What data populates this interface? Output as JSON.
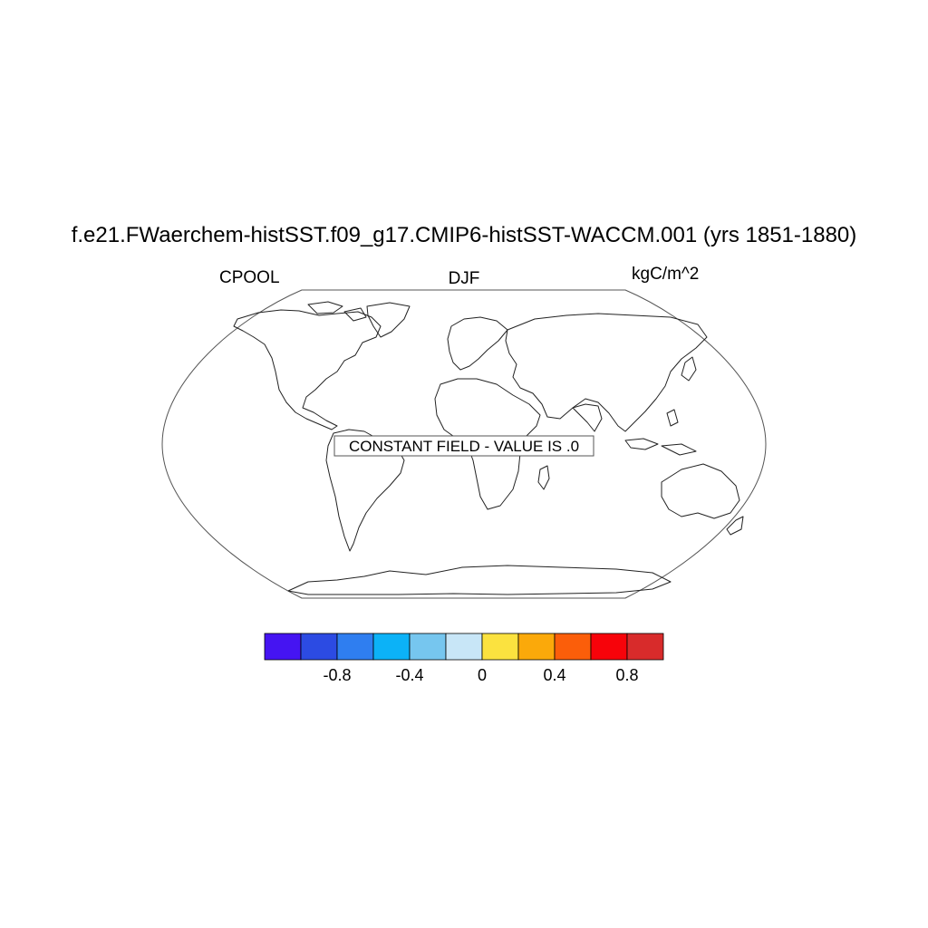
{
  "title": "f.e21.FWaerchem-histSST.f09_g17.CMIP6-histSST-WACCM.001 (yrs 1851-1880)",
  "left_label": "CPOOL",
  "center_label": "DJF",
  "right_label": "kgC/m^2",
  "map": {
    "projection": "Robinson",
    "note": "CONSTANT FIELD - VALUE IS .0"
  },
  "colorbar": {
    "colors": [
      "#4514f2",
      "#2c4be3",
      "#2f7ef0",
      "#0cb2f7",
      "#76c6ef",
      "#c8e6f7",
      "#fbe23f",
      "#fba90a",
      "#fb5e0a",
      "#f7030a",
      "#d82b2b"
    ],
    "tick_labels": [
      "-0.8",
      "-0.4",
      "0",
      "0.4",
      "0.8"
    ],
    "tick_values": [
      -0.8,
      -0.4,
      0,
      0.4,
      0.8
    ],
    "boundaries": [
      -1.0,
      -0.8,
      -0.6,
      -0.4,
      -0.2,
      0,
      0.2,
      0.4,
      0.6,
      0.8,
      1.0
    ],
    "range": [
      -1.1,
      1.1
    ]
  }
}
